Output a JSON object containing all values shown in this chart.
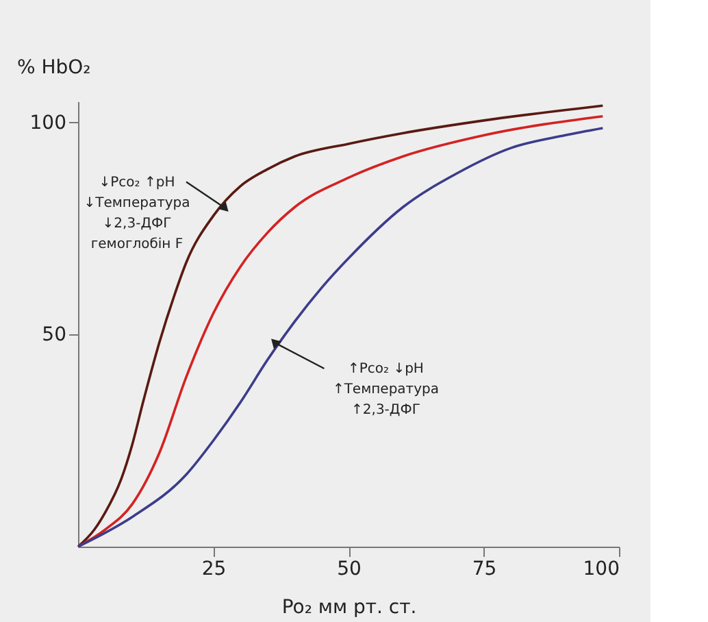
{
  "chart_data": {
    "type": "line",
    "ylabel": "% HbO₂",
    "xlabel": "Po₂ мм рт. ст.",
    "xlim": [
      0,
      100
    ],
    "ylim": [
      0,
      105
    ],
    "xticks": [
      25,
      50,
      75,
      100
    ],
    "yticks": [
      50,
      100
    ],
    "grid": false,
    "marker": "none",
    "line_style": "solid",
    "series": [
      {
        "color": "#5a1a12",
        "x": [
          0,
          3,
          5,
          8,
          10,
          12,
          15,
          18,
          20,
          25,
          30,
          35,
          40,
          50,
          60,
          75,
          97
        ],
        "values": [
          0,
          4,
          8,
          16,
          24,
          34,
          48,
          60,
          67,
          78,
          85,
          89,
          92,
          95,
          97.5,
          100.5,
          104
        ]
      },
      {
        "color": "#d42222",
        "x": [
          0,
          5,
          10,
          15,
          20,
          25,
          30,
          35,
          40,
          50,
          60,
          75,
          97
        ],
        "values": [
          0,
          4,
          10,
          22,
          40,
          55,
          66,
          74,
          80,
          87,
          92,
          97,
          101.5
        ]
      },
      {
        "color": "#3c3c8c",
        "x": [
          0,
          10,
          20,
          25,
          30,
          35,
          40,
          45,
          50,
          60,
          70,
          80,
          90,
          97
        ],
        "values": [
          0,
          7,
          17,
          25,
          34,
          44,
          53,
          61,
          68,
          80,
          88,
          94,
          97,
          98.7
        ]
      }
    ],
    "annotations": [
      {
        "text": "↓Pco₂   ↑pH\n↓Температура\n↓2,3-ДФГ\nгемоглобін F",
        "x": 27,
        "y": 80
      },
      {
        "text": "↑Pco₂   ↓pH\n↑Температура\n↑2,3-ДФГ",
        "x": 36.5,
        "y": 48
      }
    ]
  }
}
